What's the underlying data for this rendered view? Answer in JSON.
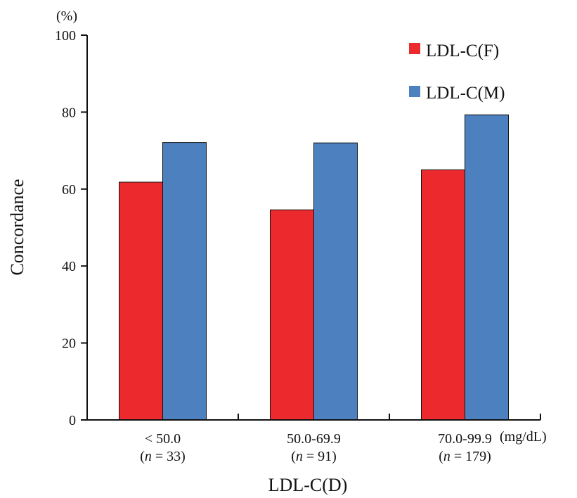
{
  "chart_data": {
    "type": "bar",
    "title": "",
    "ylabel": "Concordance",
    "y_unit": "(%)",
    "xlabel": "LDL-C(D)",
    "x_unit": "(mg/dL)",
    "ylim": [
      0,
      100
    ],
    "yticks": [
      "0",
      "20",
      "40",
      "60",
      "80",
      "100"
    ],
    "categories": [
      "< 50.0",
      "50.0-69.9",
      "70.0-99.9"
    ],
    "category_counts": [
      33,
      91,
      179
    ],
    "series": [
      {
        "name": "LDL-C(F)",
        "values": [
          61.8,
          54.6,
          65.0
        ]
      },
      {
        "name": "LDL-C(M)",
        "values": [
          72.1,
          72.0,
          79.3
        ]
      }
    ],
    "colors": [
      "#ec2a2e",
      "#4d80bf"
    ],
    "grid": false,
    "legend_position": "top-right"
  }
}
